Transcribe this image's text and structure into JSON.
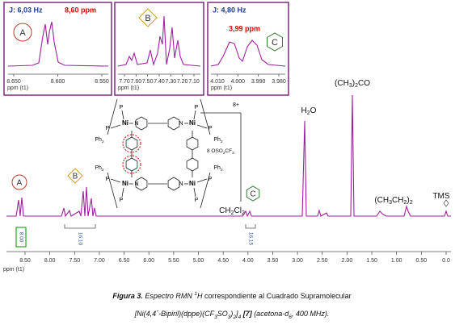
{
  "insets": [
    {
      "label": "A",
      "coupling": "J: 6,03 Hz",
      "shift": "8,60 ppm",
      "ticks": [
        "8.650",
        "8.600",
        "8.550"
      ],
      "axis_label": "ppm (t1)"
    },
    {
      "label": "B",
      "ticks": [
        "7.70",
        "7.60",
        "7.50",
        "7.40",
        "7.30",
        "7.20",
        "7.10"
      ],
      "axis_label": "ppm (t1)"
    },
    {
      "label": "C",
      "coupling": "J: 4,80 Hz",
      "shift": "3,99 ppm",
      "ticks": [
        "4.010",
        "4.000",
        "3.990",
        "3.980"
      ],
      "axis_label": "ppm (t1)"
    }
  ],
  "spectrum": {
    "markers": [
      "A",
      "B",
      "C"
    ],
    "peak_labels": [
      [
        "CH",
        "2",
        "Cl",
        "2"
      ],
      [
        "H",
        "2",
        "O"
      ],
      [
        "(CH",
        "3",
        ")",
        "2",
        "CO"
      ],
      [
        "(CH",
        "3",
        "CH",
        "2",
        ")",
        "2"
      ],
      [
        "TMS"
      ]
    ],
    "integrals": [
      "8.00",
      "16.10",
      "16.15"
    ],
    "axis": {
      "ticks": [
        "8.50",
        "8.00",
        "7.50",
        "7.00",
        "6.50",
        "6.00",
        "5.50",
        "5.00",
        "4.50",
        "4.00",
        "3.50",
        "3.00",
        "2.50",
        "2.00",
        "1.50",
        "1.00",
        "0.50",
        "0.0"
      ],
      "label": "ppm (t1)"
    }
  },
  "structure": {
    "centers": [
      {
        "metal": "Ni",
        "donors": [
          "P",
          "P",
          "N"
        ],
        "substituent": [
          "Ph",
          "2"
        ]
      },
      {
        "metal": "Ni",
        "donors": [
          "P",
          "P",
          "N"
        ],
        "substituent": [
          "Ph",
          "2"
        ]
      },
      {
        "metal": "Ni",
        "donors": [
          "P",
          "P",
          "N"
        ],
        "substituent": [
          "Ph",
          "2"
        ]
      },
      {
        "metal": "Ni",
        "donors": [
          "P",
          "P",
          "N"
        ],
        "substituent": [
          "Ph",
          "2"
        ]
      }
    ],
    "charge": "8+",
    "counterion": [
      "8 OSO",
      "2",
      "CF",
      "3"
    ]
  },
  "caption": {
    "line1": [
      {
        "text": "Figura 3.",
        "style": "bold-italic"
      },
      {
        "text": " Espectro RMN ",
        "style": "italic"
      },
      {
        "text": "1",
        "style": "sup"
      },
      {
        "text": "H",
        "style": "italic"
      },
      {
        "text": " correspondiente al Cuadrado Supramolecular",
        "style": "plain"
      }
    ],
    "line2": [
      {
        "text": "[Ni(4,4´-Bipiril)(dppe)(CF",
        "style": "italic"
      },
      {
        "text": "3",
        "style": "sub"
      },
      {
        "text": "SO",
        "style": "italic"
      },
      {
        "text": "3",
        "style": "sub"
      },
      {
        "text": ")",
        "style": "italic"
      },
      {
        "text": "2",
        "style": "sub"
      },
      {
        "text": "]",
        "style": "italic"
      },
      {
        "text": "4",
        "style": "sub"
      },
      {
        "text": " [7]",
        "style": "bold-italic"
      },
      {
        "text": " (acetona-d",
        "style": "italic"
      },
      {
        "text": "6",
        "style": "sub"
      },
      {
        "text": ", 400 MHz).",
        "style": "italic"
      }
    ]
  }
}
